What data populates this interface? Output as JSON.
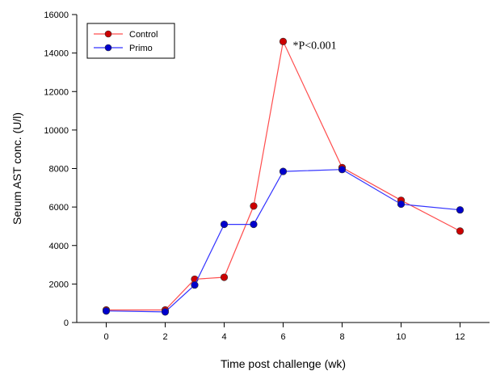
{
  "chart_data": {
    "type": "line",
    "title": "",
    "xlabel": "Time post challenge (wk)",
    "ylabel": "Serum AST conc. (U/l)",
    "xlim": [
      -1,
      13
    ],
    "ylim": [
      0,
      16000
    ],
    "xticks": [
      0,
      2,
      4,
      6,
      8,
      10,
      12
    ],
    "yticks": [
      0,
      2000,
      4000,
      6000,
      8000,
      10000,
      12000,
      14000,
      16000
    ],
    "grid": false,
    "legend_position": "top-left",
    "series": [
      {
        "name": "Control",
        "color": "#ff4d4d",
        "marker_color": "#cc0000",
        "x": [
          0,
          2,
          3,
          4,
          5,
          6,
          8,
          10,
          12
        ],
        "y": [
          650,
          650,
          2250,
          2350,
          6050,
          14600,
          8050,
          6350,
          4750
        ]
      },
      {
        "name": "Primo",
        "color": "#3333ff",
        "marker_color": "#0000cc",
        "x": [
          0,
          2,
          3,
          4,
          5,
          6,
          8,
          10,
          12
        ],
        "y": [
          600,
          550,
          1950,
          5100,
          5100,
          7850,
          7950,
          6150,
          5850
        ]
      }
    ],
    "annotations": [
      {
        "text": "*P<0.001",
        "x": 6,
        "y": 14600
      }
    ]
  }
}
